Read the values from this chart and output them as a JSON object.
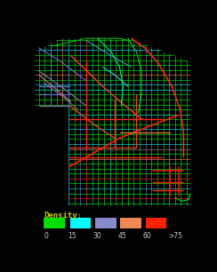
{
  "background_color": "#000000",
  "figure_size": [
    2.44,
    3.06
  ],
  "dpi": 100,
  "legend": {
    "title": "Density:",
    "title_color": "#cccc00",
    "title_fontsize": 6.5,
    "items": [
      {
        "label": "0",
        "color": "#00dd00"
      },
      {
        "label": "15",
        "color": "#00ffff"
      },
      {
        "label": "30",
        "color": "#8888cc"
      },
      {
        "label": "45",
        "color": "#ee8855"
      },
      {
        "label": "60",
        "color": "#ff2200"
      },
      {
        "label": ">75",
        "color": "#cc0000"
      }
    ],
    "tick_fontsize": 5.5,
    "tick_color": "#cccccc"
  },
  "city_bounds": {
    "x_min": 0.03,
    "x_max": 0.97,
    "y_min": 0.1,
    "y_max": 0.97
  }
}
